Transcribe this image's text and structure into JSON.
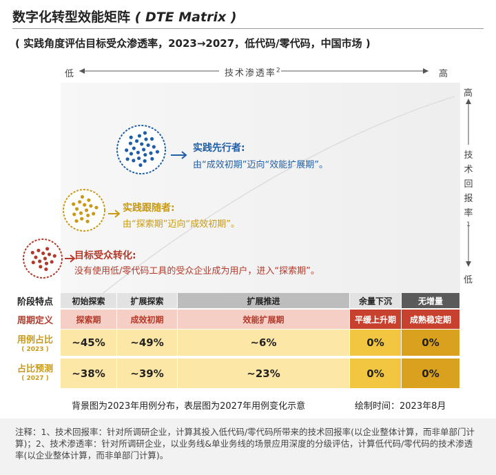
{
  "header": {
    "title": "数字化转型效能矩阵",
    "title_en": "( DTE Matrix )",
    "subtitle": "( 实践角度评估目标受众渗透率，2023→2027，低代码/零代码，中国市场 )"
  },
  "axes": {
    "x_low": "低",
    "x_label": "技术渗透率",
    "x_sup": "2",
    "x_high": "高",
    "y_high": "高",
    "y_label": "技术回报率",
    "y_sup": "1",
    "y_low": "低"
  },
  "groups": [
    {
      "name": "实践先行者:",
      "desc": "由“成效初期”迈向“效能扩展期”。"
    },
    {
      "name": "实践跟随者:",
      "desc": "由“探索期”迈向“成效初期”。"
    },
    {
      "name": "目标受众转化:",
      "desc": "没有使用低/零代码工具的受众企业成为用户，进入“探索期”。"
    }
  ],
  "table": {
    "row_headers": [
      "阶段特点",
      "周期定义",
      "用例占比",
      "( 2023 )",
      "占比预测",
      "( 2027 )"
    ],
    "rows": [
      [
        "初始探索",
        "扩展探索",
        "扩展推进",
        "余量下沉",
        "无增量"
      ],
      [
        "探索期",
        "成效初期",
        "效能扩展期",
        "平缓上升期",
        "成熟稳定期"
      ],
      [
        "~45%",
        "~49%",
        "~6%",
        "0%",
        "0%"
      ],
      [
        "~38%",
        "~39%",
        "~23%",
        "0%",
        "0%"
      ]
    ]
  },
  "footer": {
    "caption": "背景图为2023年用例分布，表层图为2027年用例变化示意",
    "date": "绘制时间：2023年8月"
  },
  "notes": "注释：1、技术回报率：针对所调研企业，计算其投入低代码/零代码所带来的技术回报率(以企业整体计算，而非单部门计算)；2、技术渗透率：针对所调研企业，以业务线&单业务线的场景应用深度的分级评估，计算低代码/零代码的技术渗透率(以企业整体计算，而非单部门计算)。"
}
